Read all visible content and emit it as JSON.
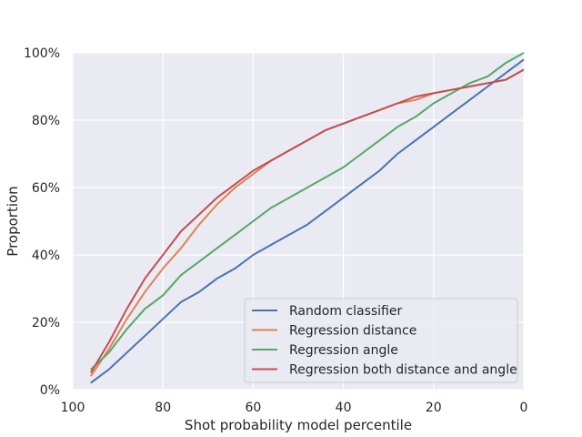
{
  "chart_data": {
    "type": "line",
    "title": "",
    "xlabel": "Shot probability model percentile",
    "ylabel": "Proportion",
    "xlim": [
      100,
      0
    ],
    "ylim": [
      0,
      1
    ],
    "x_ticks": [
      100,
      80,
      60,
      40,
      20,
      0
    ],
    "x_tick_labels": [
      "100",
      "80",
      "60",
      "40",
      "20",
      "0"
    ],
    "y_ticks": [
      0,
      0.2,
      0.4,
      0.6,
      0.8,
      1.0
    ],
    "y_tick_labels": [
      "0%",
      "20%",
      "40%",
      "60%",
      "80%",
      "100%"
    ],
    "grid": true,
    "legend_position": "lower-right",
    "series": [
      {
        "name": "Random classifier",
        "color": "#4c72b0",
        "x": [
          96,
          92,
          88,
          84,
          80,
          76,
          72,
          68,
          64,
          60,
          56,
          52,
          48,
          44,
          40,
          36,
          32,
          28,
          24,
          20,
          16,
          12,
          8,
          4,
          0
        ],
        "y": [
          0.02,
          0.06,
          0.11,
          0.16,
          0.21,
          0.26,
          0.29,
          0.33,
          0.36,
          0.4,
          0.43,
          0.46,
          0.49,
          0.53,
          0.57,
          0.61,
          0.65,
          0.7,
          0.74,
          0.78,
          0.82,
          0.86,
          0.9,
          0.94,
          0.98
        ]
      },
      {
        "name": "Regression distance",
        "color": "#dd8452",
        "x": [
          96,
          92,
          88,
          84,
          80,
          76,
          72,
          68,
          64,
          60,
          56,
          52,
          48,
          44,
          40,
          36,
          32,
          28,
          24,
          20,
          16,
          12,
          8,
          4,
          0
        ],
        "y": [
          0.04,
          0.12,
          0.21,
          0.29,
          0.36,
          0.42,
          0.49,
          0.55,
          0.6,
          0.64,
          0.68,
          0.71,
          0.74,
          0.77,
          0.79,
          0.81,
          0.83,
          0.85,
          0.86,
          0.88,
          0.89,
          0.9,
          0.91,
          0.92,
          0.95
        ]
      },
      {
        "name": "Regression angle",
        "color": "#55a868",
        "x": [
          96,
          92,
          88,
          84,
          80,
          76,
          72,
          68,
          64,
          60,
          56,
          52,
          48,
          44,
          40,
          36,
          32,
          28,
          24,
          20,
          16,
          12,
          8,
          4,
          0
        ],
        "y": [
          0.06,
          0.11,
          0.18,
          0.24,
          0.28,
          0.34,
          0.38,
          0.42,
          0.46,
          0.5,
          0.54,
          0.57,
          0.6,
          0.63,
          0.66,
          0.7,
          0.74,
          0.78,
          0.81,
          0.85,
          0.88,
          0.91,
          0.93,
          0.97,
          1.0
        ]
      },
      {
        "name": "Regression both distance and angle",
        "color": "#c44e52",
        "x": [
          96,
          92,
          88,
          84,
          80,
          76,
          72,
          68,
          64,
          60,
          56,
          52,
          48,
          44,
          40,
          36,
          32,
          28,
          24,
          20,
          16,
          12,
          8,
          4,
          0
        ],
        "y": [
          0.05,
          0.14,
          0.24,
          0.33,
          0.4,
          0.47,
          0.52,
          0.57,
          0.61,
          0.65,
          0.68,
          0.71,
          0.74,
          0.77,
          0.79,
          0.81,
          0.83,
          0.85,
          0.87,
          0.88,
          0.89,
          0.9,
          0.91,
          0.92,
          0.95
        ]
      }
    ]
  },
  "style": {
    "plot_background": "#eaeaf2",
    "grid_color": "#ffffff",
    "text_color": "#262626"
  }
}
